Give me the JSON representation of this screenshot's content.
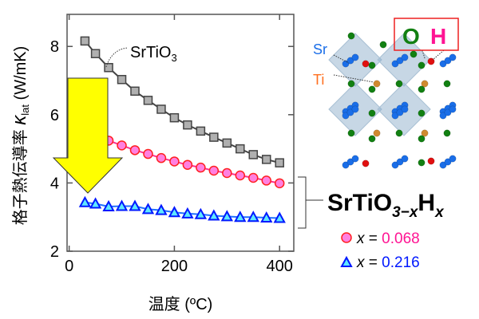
{
  "chart_data": {
    "type": "scatter",
    "xlabel": "温度 (ºC)",
    "ylabel_main": "格子熱伝導率 ",
    "ylabel_symbol": "κ",
    "ylabel_sub": "lat",
    "ylabel_unit": " (W/mK)",
    "xlim": [
      -4,
      427
    ],
    "ylim": [
      2,
      8.94
    ],
    "xticks": [
      "0",
      "200",
      "400"
    ],
    "xtick_values": [
      0,
      200,
      400
    ],
    "yticks": [
      "2",
      "4",
      "6",
      "8"
    ],
    "ytick_values": [
      2,
      4,
      6,
      8
    ],
    "x": [
      30,
      50,
      75,
      100,
      125,
      150,
      175,
      200,
      225,
      250,
      275,
      300,
      325,
      350,
      375,
      400
    ],
    "series": [
      {
        "name": "SrTiO3",
        "marker": "square",
        "color": "#444444",
        "fill": "#b0b0b0",
        "values": [
          8.16,
          7.79,
          7.38,
          7.03,
          6.69,
          6.42,
          6.16,
          5.91,
          5.7,
          5.52,
          5.34,
          5.17,
          5.0,
          4.83,
          4.69,
          4.59
        ]
      },
      {
        "name": "x = 0.068",
        "marker": "circle",
        "color": "#ff2020",
        "fill": "#ff80e0",
        "line": "#ff3090",
        "values": [
          5.46,
          5.35,
          5.24,
          5.1,
          4.96,
          4.85,
          4.73,
          4.63,
          4.53,
          4.45,
          4.36,
          4.29,
          4.22,
          4.15,
          4.07,
          3.99
        ]
      },
      {
        "name": "x = 0.216",
        "marker": "triangle",
        "color": "#0018ff",
        "fill": "#60e8ff",
        "line": "#2070ff",
        "values": [
          3.43,
          3.39,
          3.31,
          3.32,
          3.32,
          3.23,
          3.2,
          3.14,
          3.1,
          3.08,
          3.04,
          3.02,
          3.0,
          3.0,
          2.98,
          2.97
        ]
      }
    ],
    "annotation": {
      "base": "SrTiO",
      "sub": "3"
    },
    "grid": false
  },
  "formula": {
    "a": "SrTiO",
    "b": "3−",
    "c": "x",
    "d": "H",
    "e": "x"
  },
  "legend": [
    {
      "var": "x",
      "eq": " = ",
      "value": "0.068",
      "color": "#ff1493"
    },
    {
      "var": "x",
      "eq": " = ",
      "value": "0.216",
      "color": "#0018ff"
    }
  ],
  "structure": {
    "sr": "Sr",
    "ti": "Ti",
    "o": "O",
    "h": "H",
    "sr_color": "#1a6ee8",
    "ti_color": "#ff7020",
    "o_color": "#128012",
    "h_color": "#ff1493"
  },
  "arrow_color": "#ffff00"
}
